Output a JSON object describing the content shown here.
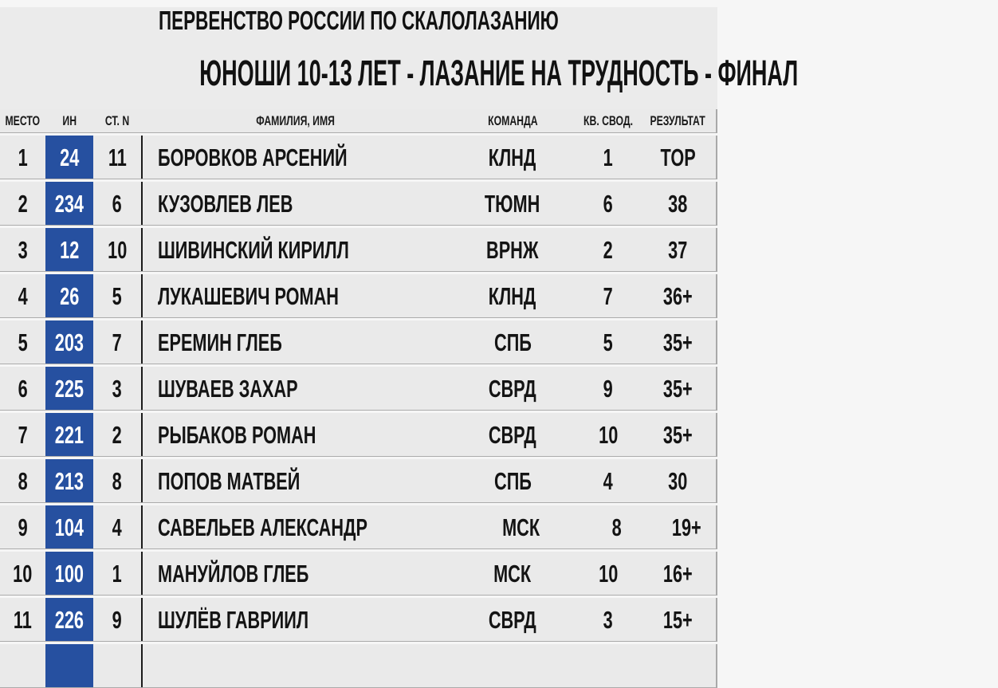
{
  "title": {
    "line1": "ПЕРВЕНСТВО РОССИИ ПО СКАЛОЛАЗАНИЮ",
    "line2": "ЮНОШИ 10-13 ЛЕТ - ЛАЗАНИЕ НА ТРУДНОСТЬ - ФИНАЛ"
  },
  "table": {
    "columns": {
      "place": "МЕСТО",
      "bib": "ИН",
      "start": "СТ. N",
      "name": "ФАМИЛИЯ, ИМЯ",
      "team": "КОМАНДА",
      "qual": "КВ. СВОД.",
      "result": "РЕЗУЛЬТАТ"
    },
    "rows": [
      {
        "place": "1",
        "bib": "24",
        "start": "11",
        "name": "БОРОВКОВ АРСЕНИЙ",
        "team": "КЛНД",
        "qual": "1",
        "result": "TOP"
      },
      {
        "place": "2",
        "bib": "234",
        "start": "6",
        "name": "КУЗОВЛЕВ ЛЕВ",
        "team": "ТЮМН",
        "qual": "6",
        "result": "38"
      },
      {
        "place": "3",
        "bib": "12",
        "start": "10",
        "name": "ШИВИНСКИЙ КИРИЛЛ",
        "team": "ВРНЖ",
        "qual": "2",
        "result": "37"
      },
      {
        "place": "4",
        "bib": "26",
        "start": "5",
        "name": "ЛУКАШЕВИЧ РОМАН",
        "team": "КЛНД",
        "qual": "7",
        "result": "36+"
      },
      {
        "place": "5",
        "bib": "203",
        "start": "7",
        "name": "ЕРЕМИН ГЛЕБ",
        "team": "СПБ",
        "qual": "5",
        "result": "35+"
      },
      {
        "place": "6",
        "bib": "225",
        "start": "3",
        "name": "ШУВАЕВ ЗАХАР",
        "team": "СВРД",
        "qual": "9",
        "result": "35+"
      },
      {
        "place": "7",
        "bib": "221",
        "start": "2",
        "name": "РЫБАКОВ РОМАН",
        "team": "СВРД",
        "qual": "10",
        "result": "35+"
      },
      {
        "place": "8",
        "bib": "213",
        "start": "8",
        "name": "ПОПОВ МАТВЕЙ",
        "team": "СПБ",
        "qual": "4",
        "result": "30"
      },
      {
        "place": "9",
        "bib": "104",
        "start": "4",
        "name": "САВЕЛЬЕВ АЛЕКСАНДР",
        "team": "МСК",
        "qual": "8",
        "result": "19+"
      },
      {
        "place": "10",
        "bib": "100",
        "start": "1",
        "name": "МАНУЙЛОВ ГЛЕБ",
        "team": "МСК",
        "qual": "10",
        "result": "16+"
      },
      {
        "place": "11",
        "bib": "226",
        "start": "9",
        "name": "ШУЛЁВ ГАВРИИЛ",
        "team": "СВРД",
        "qual": "3",
        "result": "15+"
      }
    ]
  },
  "colors": {
    "bib_badge_blue": "#2650A0",
    "row_background": "#EAEAEA",
    "title_background": "#EBEBEB",
    "separator_gap": "#F6F6F6",
    "separator_line": "#ABABAB",
    "divider_black": "#1B1B1B",
    "text": "#141414",
    "bib_text": "#FFFFFF"
  }
}
